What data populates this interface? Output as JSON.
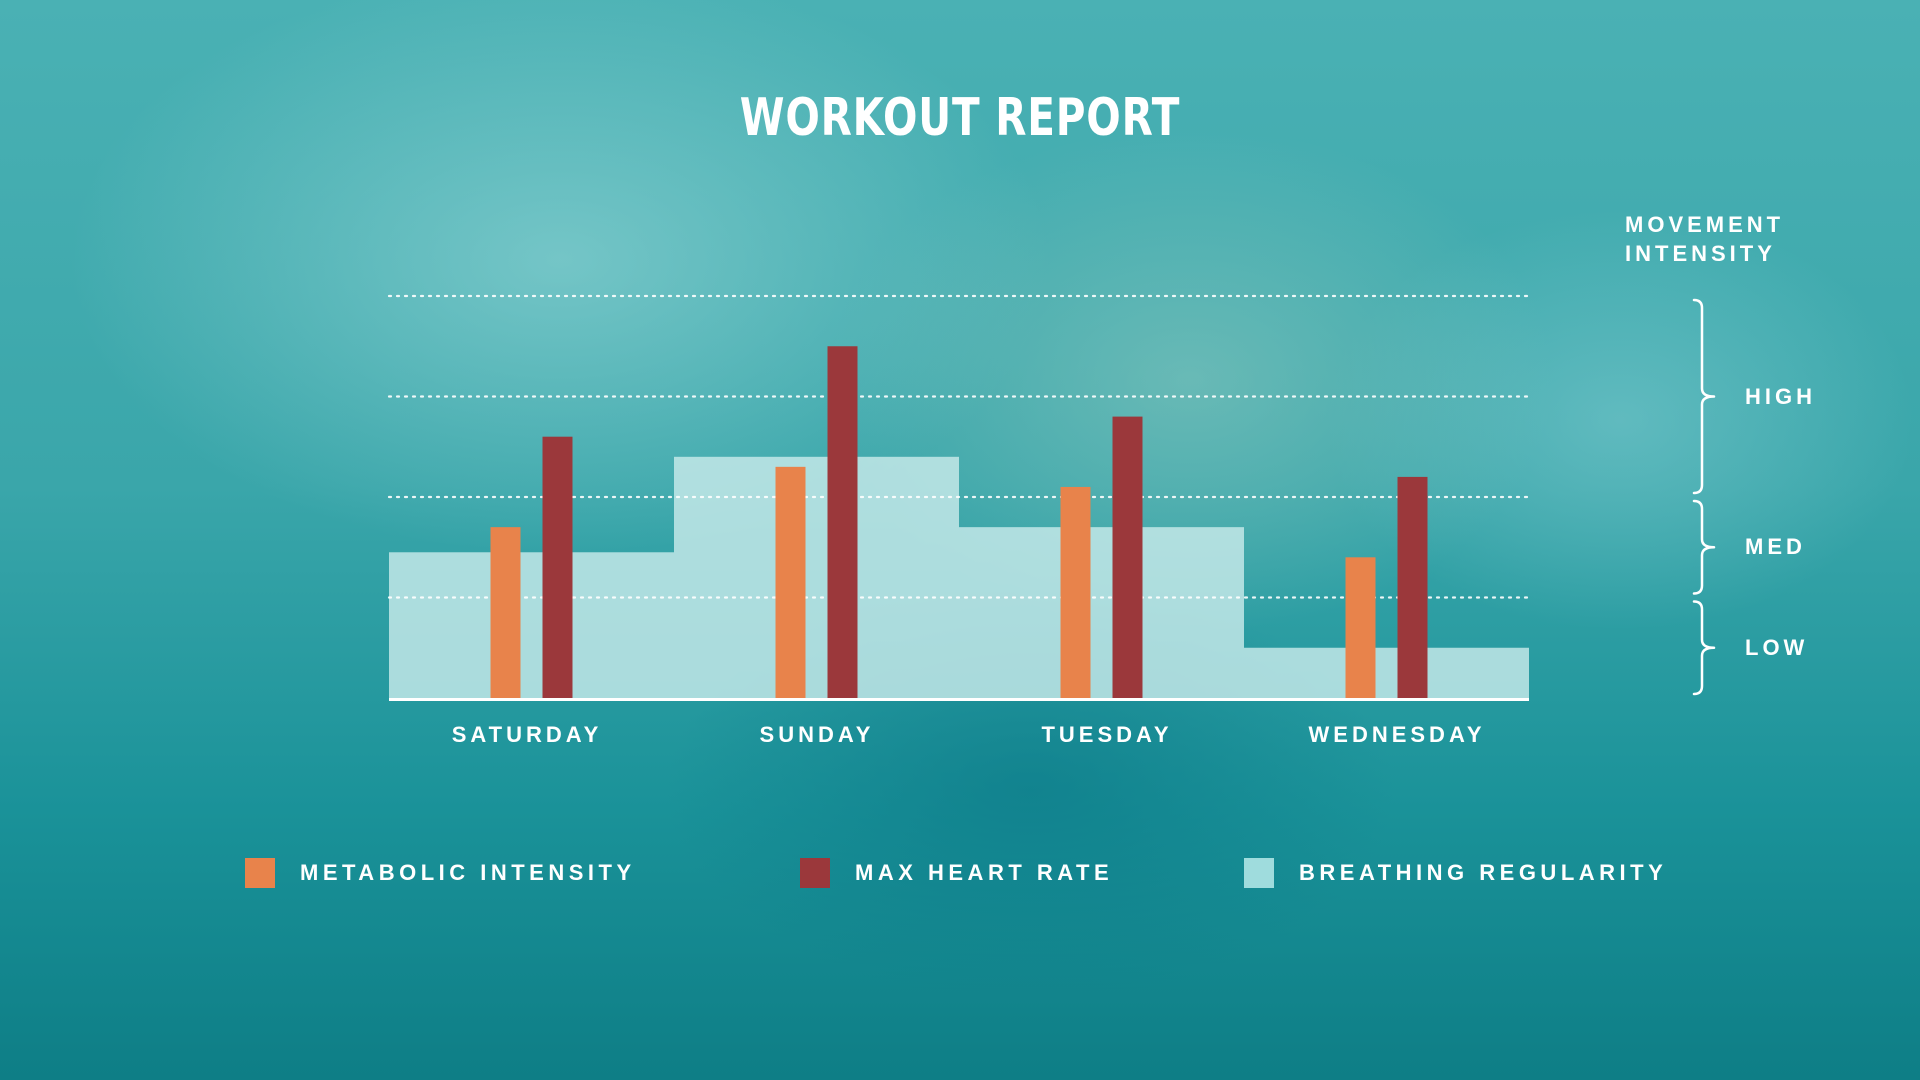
{
  "title": "WORKOUT REPORT",
  "intensity_scale": {
    "title_lines": [
      "MOVEMENT",
      "INTENSITY"
    ],
    "levels": [
      {
        "label": "HIGH",
        "range": [
          2,
          4
        ]
      },
      {
        "label": "MED",
        "range": [
          1,
          2
        ]
      },
      {
        "label": "LOW",
        "range": [
          0,
          1
        ]
      }
    ]
  },
  "chart_data": {
    "type": "bar",
    "categories": [
      "SATURDAY",
      "SUNDAY",
      "TUESDAY",
      "WEDNESDAY"
    ],
    "series": [
      {
        "name": "METABOLIC INTENSITY",
        "type": "bar",
        "color": "#e8834b",
        "values": [
          1.7,
          2.3,
          2.1,
          1.4
        ]
      },
      {
        "name": "MAX HEART RATE",
        "type": "bar",
        "color": "#9b383b",
        "values": [
          2.6,
          3.5,
          2.8,
          2.2
        ]
      },
      {
        "name": "BREATHING REGULARITY",
        "type": "step-area",
        "color": "#c8eaea",
        "values": [
          1.45,
          2.4,
          1.7,
          0.5
        ]
      }
    ],
    "ylim": [
      0,
      4
    ],
    "y_gridlines": [
      1,
      2,
      3,
      4
    ],
    "grid": "dotted",
    "legend_position": "bottom"
  }
}
